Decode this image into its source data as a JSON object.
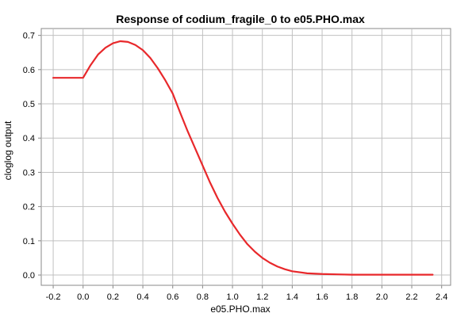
{
  "chart_data": {
    "type": "line",
    "title": "Response of codium_fragile_0 to e05.PHO.max",
    "xlabel": "e05.PHO.max",
    "ylabel": "cloglog output",
    "xlim": [
      -0.28,
      2.46
    ],
    "ylim": [
      -0.03,
      0.72
    ],
    "grid": true,
    "x_ticks": [
      -0.2,
      0.0,
      0.2,
      0.4,
      0.6,
      0.8,
      1.0,
      1.2,
      1.4,
      1.6,
      1.8,
      2.0,
      2.2,
      2.4
    ],
    "x_tick_labels": [
      "-0.2",
      "0.0",
      "0.2",
      "0.4",
      "0.6",
      "0.8",
      "1.0",
      "1.2",
      "1.4",
      "1.6",
      "1.8",
      "2.0",
      "2.2",
      "2.4"
    ],
    "y_ticks": [
      0.0,
      0.1,
      0.2,
      0.3,
      0.4,
      0.5,
      0.6,
      0.7
    ],
    "y_tick_labels": [
      "0.0",
      "0.1",
      "0.2",
      "0.3",
      "0.4",
      "0.5",
      "0.6",
      "0.7"
    ],
    "series": [
      {
        "color": "#e8282b",
        "x": [
          -0.2,
          -0.1,
          0.0,
          0.05,
          0.1,
          0.15,
          0.2,
          0.25,
          0.3,
          0.35,
          0.4,
          0.45,
          0.5,
          0.55,
          0.6,
          0.65,
          0.7,
          0.75,
          0.8,
          0.85,
          0.9,
          0.95,
          1.0,
          1.05,
          1.1,
          1.15,
          1.2,
          1.25,
          1.3,
          1.35,
          1.4,
          1.5,
          1.6,
          1.7,
          1.8,
          1.9,
          2.0,
          2.1,
          2.2,
          2.34
        ],
        "y": [
          0.576,
          0.576,
          0.576,
          0.613,
          0.644,
          0.664,
          0.677,
          0.683,
          0.681,
          0.672,
          0.657,
          0.634,
          0.604,
          0.569,
          0.53,
          0.474,
          0.42,
          0.37,
          0.32,
          0.27,
          0.225,
          0.185,
          0.15,
          0.118,
          0.09,
          0.068,
          0.05,
          0.036,
          0.025,
          0.017,
          0.011,
          0.005,
          0.003,
          0.002,
          0.001,
          0.001,
          0.001,
          0.001,
          0.001,
          0.001
        ]
      }
    ]
  }
}
